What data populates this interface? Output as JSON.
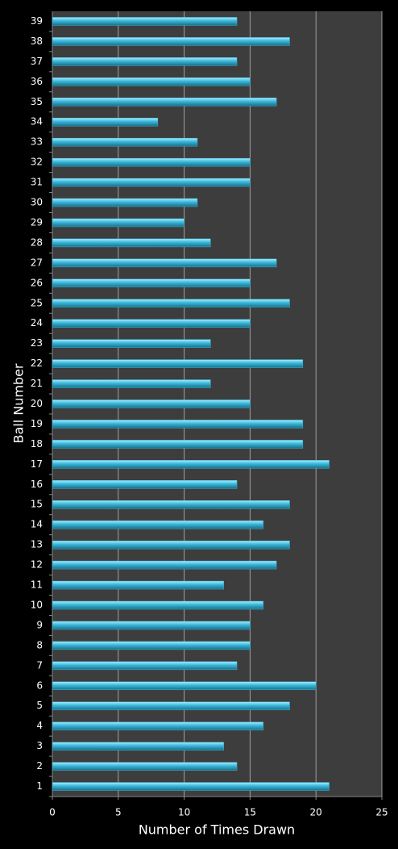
{
  "chart_data": {
    "type": "bar",
    "orientation": "horizontal",
    "x_label": "Number of Times Drawn",
    "y_label": "Ball Number",
    "categories": [
      "1",
      "2",
      "3",
      "4",
      "5",
      "6",
      "7",
      "8",
      "9",
      "10",
      "11",
      "12",
      "13",
      "14",
      "15",
      "16",
      "17",
      "18",
      "19",
      "20",
      "21",
      "22",
      "23",
      "24",
      "25",
      "26",
      "27",
      "28",
      "29",
      "30",
      "31",
      "32",
      "33",
      "34",
      "35",
      "36",
      "37",
      "38",
      "39"
    ],
    "values": [
      21,
      14,
      13,
      16,
      18,
      20,
      14,
      15,
      15,
      16,
      13,
      17,
      18,
      16,
      18,
      14,
      21,
      19,
      19,
      15,
      12,
      19,
      12,
      15,
      18,
      15,
      17,
      12,
      10,
      11,
      15,
      15,
      11,
      8,
      17,
      15,
      14,
      18,
      14
    ],
    "color": "#38b6d8",
    "xlim": [
      0,
      25
    ],
    "xticks": [
      0,
      5,
      10,
      15,
      20,
      25
    ],
    "grid": true
  }
}
